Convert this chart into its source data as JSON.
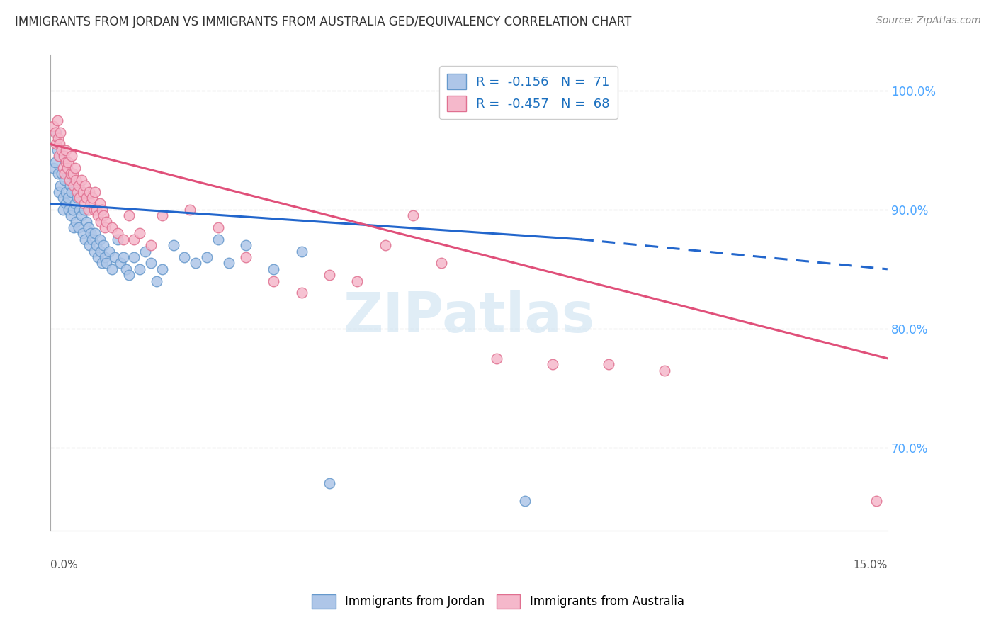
{
  "title": "IMMIGRANTS FROM JORDAN VS IMMIGRANTS FROM AUSTRALIA GED/EQUIVALENCY CORRELATION CHART",
  "source": "Source: ZipAtlas.com",
  "ylabel": "GED/Equivalency",
  "xlim": [
    0.0,
    15.0
  ],
  "ylim": [
    63.0,
    103.0
  ],
  "jordan_color": "#aec6e8",
  "jordan_edge": "#6699cc",
  "australia_color": "#f5b8cb",
  "australia_edge": "#e07090",
  "legend_jordan_R": "-0.156",
  "legend_jordan_N": "71",
  "legend_australia_R": "-0.457",
  "legend_australia_N": "68",
  "jordan_scatter": [
    [
      0.05,
      93.5
    ],
    [
      0.08,
      94.0
    ],
    [
      0.1,
      96.5
    ],
    [
      0.12,
      95.0
    ],
    [
      0.14,
      93.0
    ],
    [
      0.15,
      91.5
    ],
    [
      0.16,
      94.5
    ],
    [
      0.18,
      92.0
    ],
    [
      0.2,
      93.0
    ],
    [
      0.22,
      91.0
    ],
    [
      0.23,
      90.0
    ],
    [
      0.25,
      92.5
    ],
    [
      0.27,
      91.5
    ],
    [
      0.28,
      90.5
    ],
    [
      0.3,
      93.0
    ],
    [
      0.32,
      91.0
    ],
    [
      0.33,
      90.0
    ],
    [
      0.35,
      92.0
    ],
    [
      0.36,
      89.5
    ],
    [
      0.38,
      91.5
    ],
    [
      0.4,
      90.0
    ],
    [
      0.42,
      88.5
    ],
    [
      0.44,
      90.5
    ],
    [
      0.46,
      89.0
    ],
    [
      0.48,
      91.0
    ],
    [
      0.5,
      88.5
    ],
    [
      0.52,
      90.0
    ],
    [
      0.55,
      89.5
    ],
    [
      0.58,
      88.0
    ],
    [
      0.6,
      90.0
    ],
    [
      0.62,
      87.5
    ],
    [
      0.65,
      89.0
    ],
    [
      0.68,
      88.5
    ],
    [
      0.7,
      87.0
    ],
    [
      0.72,
      88.0
    ],
    [
      0.75,
      87.5
    ],
    [
      0.78,
      86.5
    ],
    [
      0.8,
      88.0
    ],
    [
      0.82,
      87.0
    ],
    [
      0.85,
      86.0
    ],
    [
      0.88,
      87.5
    ],
    [
      0.9,
      86.5
    ],
    [
      0.92,
      85.5
    ],
    [
      0.95,
      87.0
    ],
    [
      0.98,
      86.0
    ],
    [
      1.0,
      85.5
    ],
    [
      1.05,
      86.5
    ],
    [
      1.1,
      85.0
    ],
    [
      1.15,
      86.0
    ],
    [
      1.2,
      87.5
    ],
    [
      1.25,
      85.5
    ],
    [
      1.3,
      86.0
    ],
    [
      1.35,
      85.0
    ],
    [
      1.4,
      84.5
    ],
    [
      1.5,
      86.0
    ],
    [
      1.6,
      85.0
    ],
    [
      1.7,
      86.5
    ],
    [
      1.8,
      85.5
    ],
    [
      1.9,
      84.0
    ],
    [
      2.0,
      85.0
    ],
    [
      2.2,
      87.0
    ],
    [
      2.4,
      86.0
    ],
    [
      2.6,
      85.5
    ],
    [
      2.8,
      86.0
    ],
    [
      3.0,
      87.5
    ],
    [
      3.2,
      85.5
    ],
    [
      3.5,
      87.0
    ],
    [
      4.0,
      85.0
    ],
    [
      4.5,
      86.5
    ],
    [
      5.0,
      67.0
    ],
    [
      8.5,
      65.5
    ]
  ],
  "australia_scatter": [
    [
      0.05,
      97.0
    ],
    [
      0.08,
      96.5
    ],
    [
      0.1,
      95.5
    ],
    [
      0.12,
      97.5
    ],
    [
      0.14,
      96.0
    ],
    [
      0.15,
      94.5
    ],
    [
      0.16,
      95.5
    ],
    [
      0.18,
      96.5
    ],
    [
      0.2,
      95.0
    ],
    [
      0.22,
      93.5
    ],
    [
      0.24,
      94.5
    ],
    [
      0.25,
      93.0
    ],
    [
      0.27,
      95.0
    ],
    [
      0.28,
      94.0
    ],
    [
      0.3,
      93.5
    ],
    [
      0.32,
      94.0
    ],
    [
      0.34,
      92.5
    ],
    [
      0.36,
      93.0
    ],
    [
      0.38,
      94.5
    ],
    [
      0.4,
      93.0
    ],
    [
      0.42,
      92.0
    ],
    [
      0.44,
      93.5
    ],
    [
      0.46,
      92.5
    ],
    [
      0.48,
      91.5
    ],
    [
      0.5,
      92.0
    ],
    [
      0.52,
      91.0
    ],
    [
      0.55,
      92.5
    ],
    [
      0.58,
      91.5
    ],
    [
      0.6,
      90.5
    ],
    [
      0.62,
      92.0
    ],
    [
      0.65,
      91.0
    ],
    [
      0.68,
      90.0
    ],
    [
      0.7,
      91.5
    ],
    [
      0.72,
      90.5
    ],
    [
      0.75,
      91.0
    ],
    [
      0.78,
      90.0
    ],
    [
      0.8,
      91.5
    ],
    [
      0.82,
      90.0
    ],
    [
      0.85,
      89.5
    ],
    [
      0.88,
      90.5
    ],
    [
      0.9,
      89.0
    ],
    [
      0.92,
      90.0
    ],
    [
      0.95,
      89.5
    ],
    [
      0.98,
      88.5
    ],
    [
      1.0,
      89.0
    ],
    [
      1.1,
      88.5
    ],
    [
      1.2,
      88.0
    ],
    [
      1.3,
      87.5
    ],
    [
      1.4,
      89.5
    ],
    [
      1.5,
      87.5
    ],
    [
      1.6,
      88.0
    ],
    [
      1.8,
      87.0
    ],
    [
      2.0,
      89.5
    ],
    [
      2.5,
      90.0
    ],
    [
      3.0,
      88.5
    ],
    [
      3.5,
      86.0
    ],
    [
      4.0,
      84.0
    ],
    [
      4.5,
      83.0
    ],
    [
      5.0,
      84.5
    ],
    [
      5.5,
      84.0
    ],
    [
      6.0,
      87.0
    ],
    [
      6.5,
      89.5
    ],
    [
      7.0,
      85.5
    ],
    [
      8.0,
      77.5
    ],
    [
      9.0,
      77.0
    ],
    [
      10.0,
      77.0
    ],
    [
      11.0,
      76.5
    ],
    [
      14.8,
      65.5
    ]
  ],
  "jordan_trend": [
    0.0,
    90.5,
    9.5,
    87.5
  ],
  "jordan_dash": [
    9.5,
    87.5,
    15.0,
    85.0
  ],
  "australia_trend": [
    0.0,
    95.5,
    15.0,
    77.5
  ],
  "background_color": "#ffffff",
  "grid_color": "#dddddd",
  "title_color": "#333333",
  "right_axis_color": "#4da6ff",
  "watermark_color": "#c8dff0"
}
